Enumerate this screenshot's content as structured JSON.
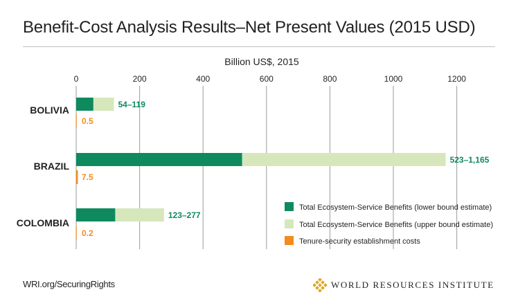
{
  "header": {
    "title": "Benefit-Cost Analysis Results–Net Present Values (2015 USD)"
  },
  "footer": {
    "source": "WRI.org/SecuringRights",
    "brand": "WORLD RESOURCES INSTITUTE",
    "logo_icon": "wri-logo-icon"
  },
  "chart_data": {
    "type": "bar",
    "orientation": "horizontal",
    "title": "Benefit-Cost Analysis Results–Net Present Values (2015 USD)",
    "xlabel": "Billion US$, 2015",
    "xlim": [
      0,
      1200
    ],
    "x_ticks": [
      0,
      200,
      400,
      600,
      800,
      1000,
      1200
    ],
    "grid": true,
    "legend_position": "bottom-right",
    "categories": [
      "BOLIVIA",
      "BRAZIL",
      "COLOMBIA"
    ],
    "series": [
      {
        "name": "Total Ecosystem-Service Benefits (lower bound estimate)",
        "color": "#0f8a5f",
        "values": [
          54,
          523,
          123
        ]
      },
      {
        "name": "Total Ecosystem-Service Benefits (upper bound estimate)",
        "color": "#d6e7bb",
        "values": [
          119,
          1165,
          277
        ]
      },
      {
        "name": "Tenure-security establishment costs",
        "color": "#f28c1e",
        "values": [
          0.5,
          7.5,
          0.2
        ]
      }
    ],
    "data_labels": {
      "benefits": [
        "54–119",
        "523–1,165",
        "123–277"
      ],
      "costs": [
        "0.5",
        "7.5",
        "0.2"
      ]
    },
    "label_colors": {
      "benefits": "#0f8a5f",
      "costs": "#f28c1e"
    }
  }
}
